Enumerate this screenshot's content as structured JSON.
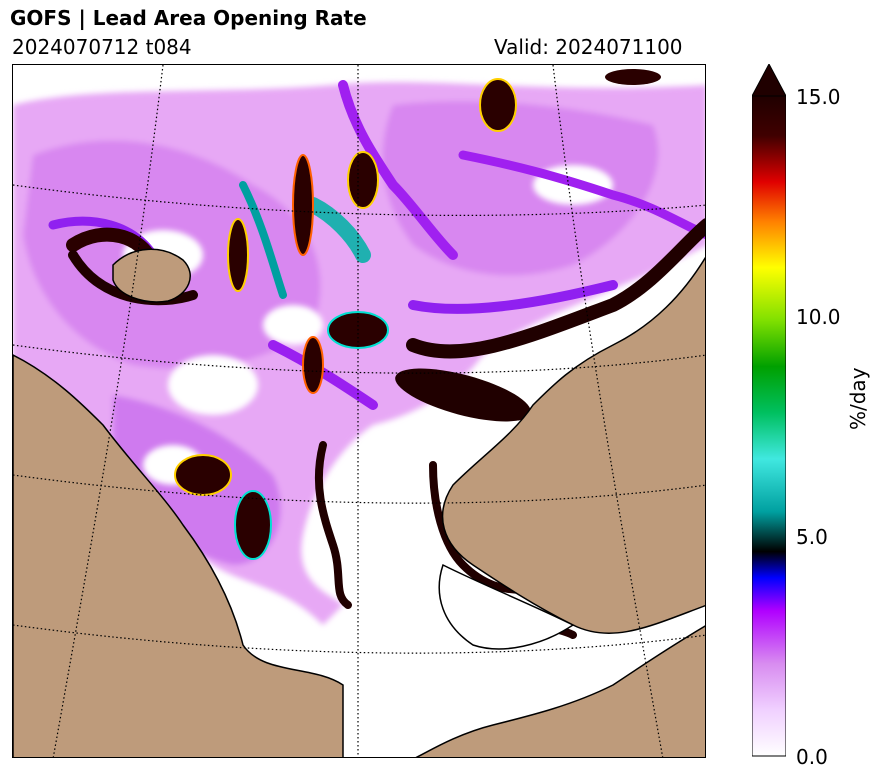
{
  "header": {
    "title": "GOFS  |  Lead Area Opening Rate",
    "run": "2024070712 t084",
    "valid": "Valid: 2024071100"
  },
  "map": {
    "land_color": "#be9b7b",
    "ocean_color": "#ffffff"
  },
  "colorbar": {
    "label": "%/day",
    "ticks": [
      "15.0",
      "10.0",
      "5.0",
      "0.0"
    ],
    "range": [
      0,
      15
    ],
    "extend": "max",
    "colors": [
      "#ffffff",
      "#f0d0ff",
      "#d88cf0",
      "#b000ff",
      "#0000ff",
      "#000000",
      "#00a0a0",
      "#40e8e0",
      "#00c060",
      "#00a000",
      "#80e000",
      "#ffff00",
      "#ff8000",
      "#e00000",
      "#400000",
      "#200000"
    ]
  }
}
